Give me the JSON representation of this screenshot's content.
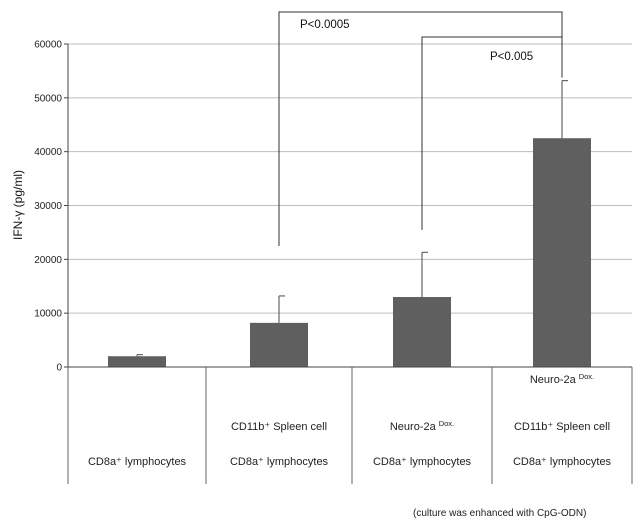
{
  "chart_data": {
    "type": "bar",
    "ylabel": "IFN-γ (pg/ml)",
    "ylim": [
      0,
      60000
    ],
    "yticks": [
      0,
      10000,
      20000,
      30000,
      40000,
      50000,
      60000
    ],
    "grid": true,
    "bar_color": "#5f5f5f",
    "categories": [
      {
        "lines": [
          "CD8a⁺ lymphocytes"
        ]
      },
      {
        "lines": [
          "CD11b⁺ Spleen cell",
          "CD8a⁺ lymphocytes"
        ]
      },
      {
        "lines": [
          "Neuro-2a",
          "CD8a⁺ lymphocytes"
        ],
        "sup": "Dox."
      },
      {
        "lines": [
          "Neuro-2a",
          "CD11b⁺ Spleen cell",
          "CD8a⁺ lymphocytes"
        ],
        "sup": "Dox."
      }
    ],
    "values": [
      2000,
      8200,
      13000,
      42500
    ],
    "errors": [
      300,
      5000,
      8300,
      10700
    ],
    "significance": [
      {
        "from": 1,
        "to": 3,
        "label": "P<0.0005"
      },
      {
        "from": 2,
        "to": 3,
        "label": "P<0.005"
      }
    ],
    "note": "(culture was enhanced with CpG-ODN)"
  }
}
